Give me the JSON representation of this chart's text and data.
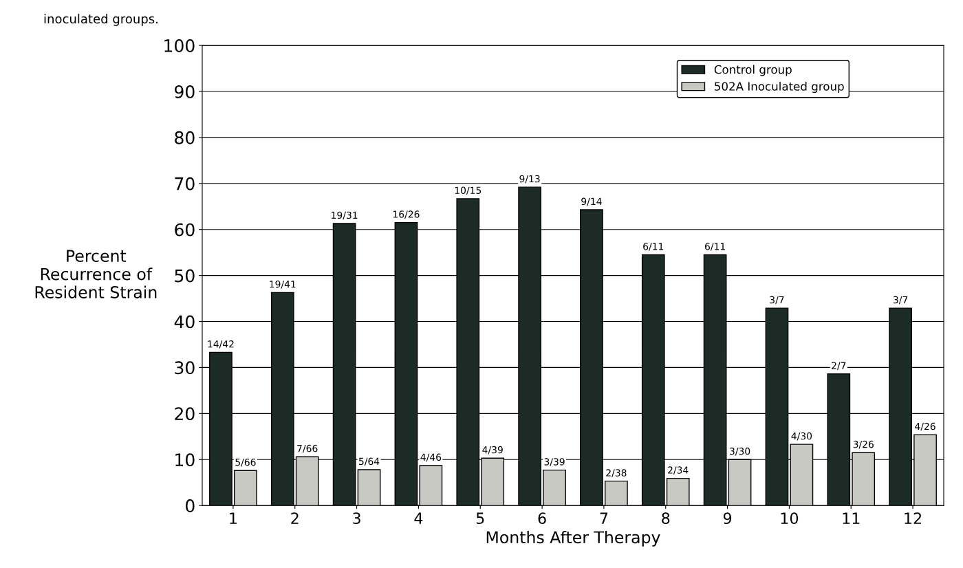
{
  "chart_data": {
    "type": "bar",
    "title": "inoculated groups.",
    "xlabel": "Months After Therapy",
    "ylabel": "Percent\nRecurrence of\nResident Strain",
    "categories": [
      "1",
      "2",
      "3",
      "4",
      "5",
      "6",
      "7",
      "8",
      "9",
      "10",
      "11",
      "12"
    ],
    "series": [
      {
        "name": "Control group",
        "color": "#1c2b26",
        "values": [
          33.3,
          46.3,
          61.3,
          61.5,
          66.7,
          69.2,
          64.3,
          54.5,
          54.5,
          42.9,
          28.6,
          42.9
        ],
        "value_labels": [
          "14/42",
          "19/41",
          "19/31",
          "16/26",
          "10/15",
          "9/13",
          "9/14",
          "6/11",
          "6/11",
          "3/7",
          "2/7",
          "3/7"
        ]
      },
      {
        "name": "502A Inoculated group",
        "color": "#c9c9c4",
        "values": [
          7.6,
          10.6,
          7.8,
          8.7,
          10.3,
          7.7,
          5.3,
          5.9,
          10.0,
          13.3,
          11.5,
          15.4
        ],
        "value_labels": [
          "5/66",
          "7/66",
          "5/64",
          "4/46",
          "4/39",
          "3/39",
          "2/38",
          "2/34",
          "3/30",
          "4/30",
          "3/26",
          "4/26"
        ]
      }
    ],
    "ylim": [
      0,
      100
    ],
    "yticks": [
      0,
      10,
      20,
      30,
      40,
      50,
      60,
      70,
      80,
      90,
      100
    ],
    "grid": "y",
    "legend": "top right"
  }
}
